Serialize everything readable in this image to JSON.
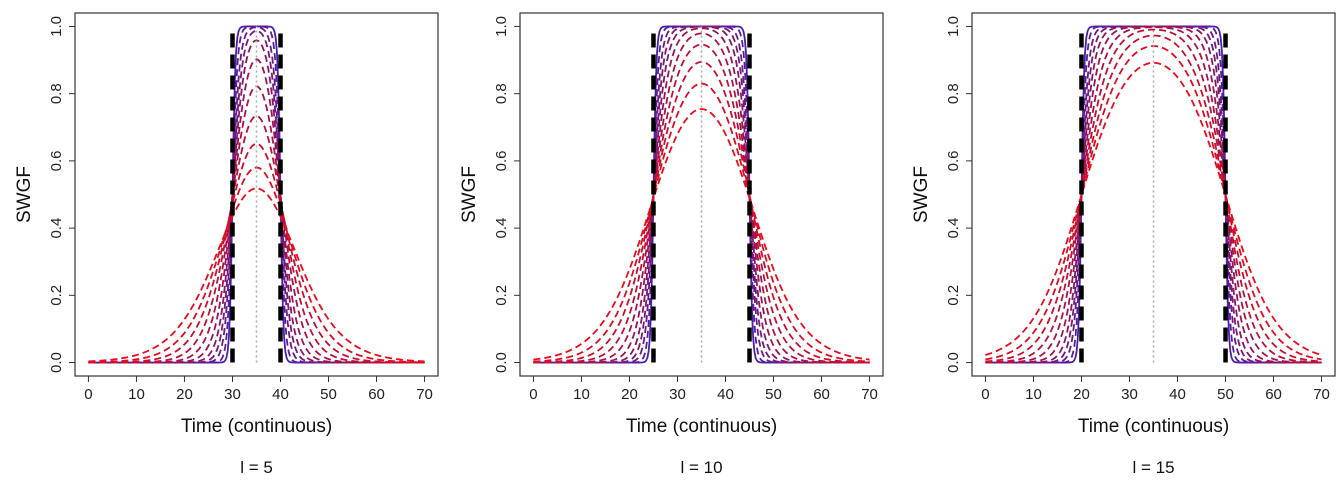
{
  "chart_data": [
    {
      "type": "line",
      "caption": "l = 5",
      "xlabel": "Time (continuous)",
      "ylabel": "SWGF",
      "xlim": [
        0,
        70
      ],
      "ylim": [
        0,
        1
      ],
      "x_ticks": [
        "0",
        "10",
        "20",
        "30",
        "40",
        "50",
        "60",
        "70"
      ],
      "y_ticks": [
        "0.0",
        "0.2",
        "0.4",
        "0.6",
        "0.8",
        "1.0"
      ],
      "center": 35,
      "half_width": 5,
      "window": [
        30,
        40
      ],
      "series": [
        {
          "s": 0.3,
          "color": "#4b1fb0"
        },
        {
          "s": 0.5,
          "color": "#5a1d9e"
        },
        {
          "s": 0.75,
          "color": "#6a1a8c"
        },
        {
          "s": 1.0,
          "color": "#7a187a"
        },
        {
          "s": 1.3,
          "color": "#8a1668"
        },
        {
          "s": 1.7,
          "color": "#9a1456"
        },
        {
          "s": 2.2,
          "color": "#aa1246"
        },
        {
          "s": 2.8,
          "color": "#bb1038"
        },
        {
          "s": 3.5,
          "color": "#cc0e2c"
        },
        {
          "s": 4.3,
          "color": "#dd0c22"
        },
        {
          "s": 5.3,
          "color": "#ee0a1a"
        }
      ]
    },
    {
      "type": "line",
      "caption": "l = 10",
      "xlabel": "Time (continuous)",
      "ylabel": "SWGF",
      "xlim": [
        0,
        70
      ],
      "ylim": [
        0,
        1
      ],
      "x_ticks": [
        "0",
        "10",
        "20",
        "30",
        "40",
        "50",
        "60",
        "70"
      ],
      "y_ticks": [
        "0.0",
        "0.2",
        "0.4",
        "0.6",
        "0.8",
        "1.0"
      ],
      "center": 35,
      "half_width": 10,
      "window": [
        25,
        45
      ],
      "series": [
        {
          "s": 0.3,
          "color": "#4b1fb0"
        },
        {
          "s": 0.5,
          "color": "#5a1d9e"
        },
        {
          "s": 0.75,
          "color": "#6a1a8c"
        },
        {
          "s": 1.0,
          "color": "#7a187a"
        },
        {
          "s": 1.3,
          "color": "#8a1668"
        },
        {
          "s": 1.7,
          "color": "#9a1456"
        },
        {
          "s": 2.2,
          "color": "#aa1246"
        },
        {
          "s": 2.8,
          "color": "#bb1038"
        },
        {
          "s": 3.5,
          "color": "#cc0e2c"
        },
        {
          "s": 4.3,
          "color": "#dd0c22"
        },
        {
          "s": 5.3,
          "color": "#ee0a1a"
        }
      ]
    },
    {
      "type": "line",
      "caption": "l = 15",
      "xlabel": "Time (continuous)",
      "ylabel": "SWGF",
      "xlim": [
        0,
        70
      ],
      "ylim": [
        0,
        1
      ],
      "x_ticks": [
        "0",
        "10",
        "20",
        "30",
        "40",
        "50",
        "60",
        "70"
      ],
      "y_ticks": [
        "0.0",
        "0.2",
        "0.4",
        "0.6",
        "0.8",
        "1.0"
      ],
      "center": 35,
      "half_width": 15,
      "window": [
        20,
        50
      ],
      "series": [
        {
          "s": 0.3,
          "color": "#4b1fb0"
        },
        {
          "s": 0.5,
          "color": "#5a1d9e"
        },
        {
          "s": 0.75,
          "color": "#6a1a8c"
        },
        {
          "s": 1.0,
          "color": "#7a187a"
        },
        {
          "s": 1.3,
          "color": "#8a1668"
        },
        {
          "s": 1.7,
          "color": "#9a1456"
        },
        {
          "s": 2.2,
          "color": "#aa1246"
        },
        {
          "s": 2.8,
          "color": "#bb1038"
        },
        {
          "s": 3.5,
          "color": "#cc0e2c"
        },
        {
          "s": 4.3,
          "color": "#dd0c22"
        },
        {
          "s": 5.3,
          "color": "#ee0a1a"
        }
      ]
    }
  ]
}
